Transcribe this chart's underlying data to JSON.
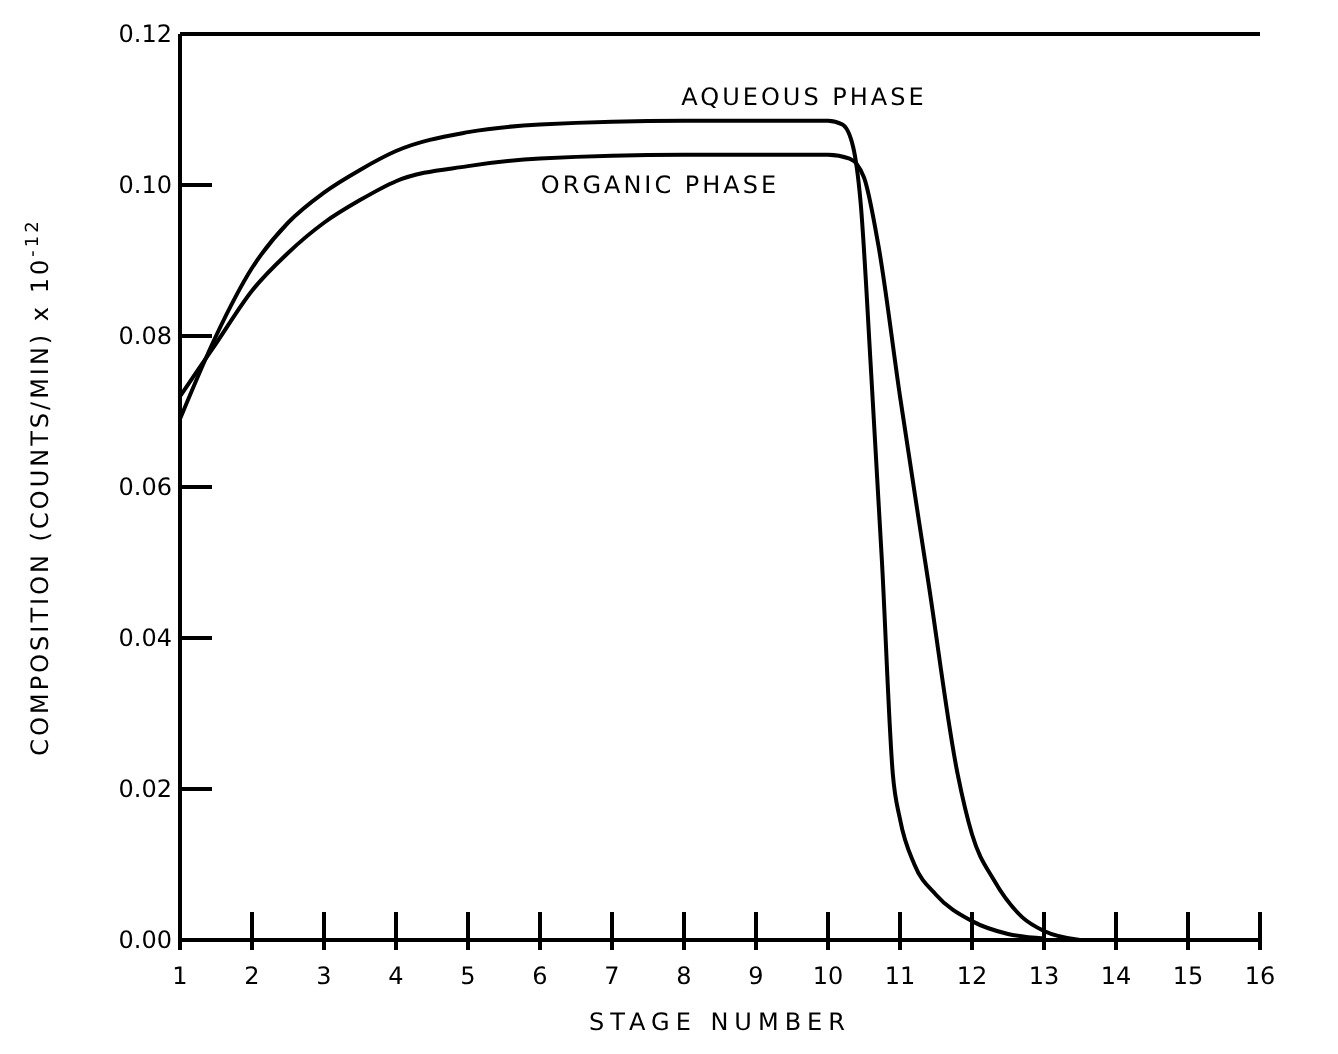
{
  "chart_data": {
    "type": "line",
    "xlabel": "STAGE NUMBER",
    "ylabel": "COMPOSITION (COUNTS/MIN) x 10$^{-12}$",
    "xlim": [
      1,
      16
    ],
    "xticks": [
      1,
      2,
      3,
      4,
      5,
      6,
      7,
      8,
      9,
      10,
      11,
      12,
      13,
      14,
      15,
      16
    ],
    "ylim": [
      0,
      0.12
    ],
    "yticks": [
      {
        "value": 0,
        "label": "0.00"
      },
      0.02,
      0.04,
      0.06,
      0.08,
      {
        "value": 0.1,
        "label": "0.10"
      },
      0.12
    ],
    "grid": false,
    "marker": "none",
    "line_style": "solid",
    "series": [
      {
        "name": "AQUEOUS PHASE",
        "color": "#000000",
        "x": [
          1,
          1.5,
          2,
          2.5,
          3,
          3.5,
          4,
          5,
          6,
          8,
          10,
          10.2,
          10.35,
          10.45,
          10.6,
          10.75,
          10.9,
          11,
          11.2,
          11.5,
          12,
          12.5,
          13
        ],
        "values": [
          0.069,
          0.08,
          0.089,
          0.095,
          0.099,
          0.102,
          0.1045,
          0.107,
          0.108,
          0.1085,
          0.1085,
          0.108,
          0.105,
          0.098,
          0.075,
          0.05,
          0.022,
          0.016,
          0.01,
          0.006,
          0.0025,
          0.0008,
          0.0002
        ]
      },
      {
        "name": "ORGANIC PHASE",
        "color": "#000000",
        "x": [
          1,
          1.5,
          2,
          2.5,
          3,
          3.5,
          4,
          5,
          6,
          8,
          10,
          10.3,
          10.5,
          10.7,
          11,
          11.4,
          11.8,
          12,
          12.3,
          12.7,
          13,
          13.5
        ],
        "values": [
          0.072,
          0.079,
          0.086,
          0.091,
          0.095,
          0.098,
          0.1005,
          0.1025,
          0.1035,
          0.104,
          0.104,
          0.1035,
          0.101,
          0.092,
          0.072,
          0.047,
          0.022,
          0.014,
          0.008,
          0.003,
          0.0012,
          0
        ]
      }
    ]
  }
}
